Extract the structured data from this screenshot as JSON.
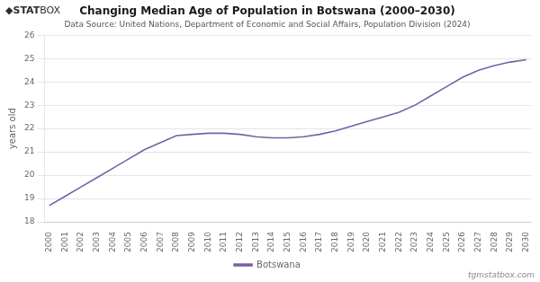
{
  "chart_data": {
    "type": "line",
    "title": "Changing Median Age of Population in Botswana (2000–2030)",
    "subtitle": "Data Source: United Nations, Department of Economic and Social Affairs, Population Division (2024)",
    "ylabel": "years old",
    "x": [
      2000,
      2001,
      2002,
      2003,
      2004,
      2005,
      2006,
      2007,
      2008,
      2009,
      2010,
      2011,
      2012,
      2013,
      2014,
      2015,
      2016,
      2017,
      2018,
      2019,
      2020,
      2021,
      2022,
      2023,
      2024,
      2025,
      2026,
      2027,
      2028,
      2029,
      2030
    ],
    "series": [
      {
        "name": "Botswana",
        "color": "#7b5ea7",
        "values": [
          18.7,
          19.1,
          19.5,
          19.9,
          20.3,
          20.7,
          21.1,
          21.4,
          21.7,
          21.75,
          21.8,
          21.8,
          21.75,
          21.65,
          21.6,
          21.6,
          21.65,
          21.75,
          21.9,
          22.1,
          22.3,
          22.5,
          22.7,
          23.0,
          23.4,
          23.8,
          24.2,
          24.5,
          24.7,
          24.85,
          24.95
        ]
      }
    ],
    "xlim": [
      1999.7,
      2030.3
    ],
    "xticks": [
      2000,
      2001,
      2002,
      2003,
      2004,
      2005,
      2006,
      2007,
      2008,
      2009,
      2010,
      2011,
      2012,
      2013,
      2014,
      2015,
      2016,
      2017,
      2018,
      2019,
      2020,
      2021,
      2022,
      2023,
      2024,
      2025,
      2026,
      2027,
      2028,
      2029,
      2030
    ],
    "ylim": [
      18,
      26
    ],
    "yticks": [
      18,
      19,
      20,
      21,
      22,
      23,
      24,
      25,
      26
    ],
    "grid": true,
    "legend": "bottom",
    "annotations": [
      "◆",
      "STAT",
      "BOX",
      "tgmstatbox.com"
    ]
  }
}
